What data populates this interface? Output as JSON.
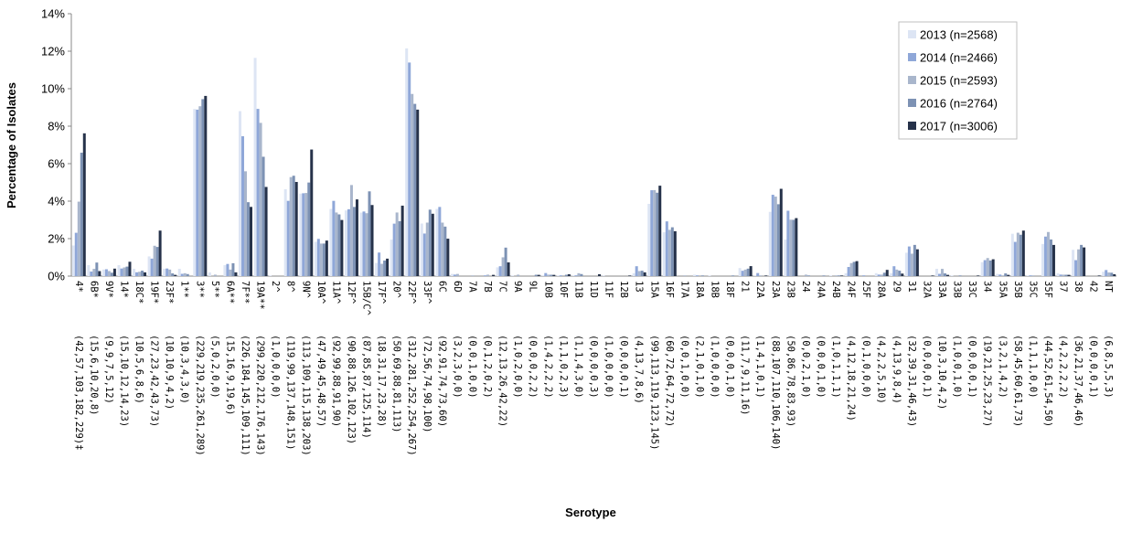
{
  "chart_data": {
    "type": "bar",
    "xlabel": "Serotype",
    "ylabel": "Percentage of Isolates",
    "ylim": [
      0,
      14
    ],
    "yticks": [
      "0%",
      "2%",
      "4%",
      "6%",
      "8%",
      "10%",
      "12%",
      "14%"
    ],
    "grid": false,
    "legend_position": "top-right",
    "categories": [
      "4*",
      "6B*",
      "9V*",
      "14*",
      "18C*",
      "19F*",
      "23F*",
      "1**",
      "3**",
      "5**",
      "6A**",
      "7F**",
      "19A**",
      "2^",
      "8^",
      "9N^",
      "10A^",
      "11A^",
      "12F^",
      "15B/C^",
      "17F^",
      "20^",
      "22F^",
      "33F^",
      "6C",
      "6D",
      "7A",
      "7B",
      "7C",
      "9A",
      "9L",
      "10B",
      "10F",
      "11B",
      "11D",
      "11F",
      "12B",
      "13",
      "15A",
      "16F",
      "17A",
      "18A",
      "18B",
      "18F",
      "21",
      "22A",
      "23A",
      "23B",
      "24",
      "24A",
      "24B",
      "24F",
      "25F",
      "28A",
      "29",
      "31",
      "32A",
      "33A",
      "33B",
      "33C",
      "34",
      "35A",
      "35B",
      "35C",
      "35F",
      "37",
      "38",
      "42",
      "NT"
    ],
    "count_labels": [
      "(42,57,103,182,229)‡",
      "(15,6,10,20,8)",
      "(9,9,7,5,12)",
      "(15,10,12,14,23)",
      "(10,5,6,8,6)",
      "(27,23,42,43,73)",
      "(10,10,9,4,2)",
      "(10,3,4,3,0)",
      "(229,219,235,261,289)",
      "(5,0,2,0,0)",
      "(15,16,9,19,6)",
      "(226,184,145,109,111)",
      "(299,220,212,176,143)",
      "(1,0,0,0,0)",
      "(119,99,137,148,151)",
      "(113,109,115,138,203)",
      "(47,49,45,48,57)",
      "(92,99,88,91,90)",
      "(90,88,126,102,123)",
      "(87,85,87,125,114)",
      "(18,31,17,23,28)",
      "(50,69,88,81,113)",
      "(312,281,252,254,267)",
      "(72,56,74,98,100)",
      "(92,91,74,73,60)",
      "(3,2,3,0,0)",
      "(0,0,1,0,0)",
      "(0,1,2,0,2)",
      "(12,13,26,42,22)",
      "(1,0,2,0,0)",
      "(0,0,0,2,2)",
      "(1,4,2,2,2)",
      "(1,1,0,2,3)",
      "(1,1,4,3,0)",
      "(0,0,0,0,3)",
      "(1,0,0,0,0)",
      "(0,0,0,0,1)",
      "(4,13,7,8,6)",
      "(99,113,119,123,145)",
      "(60,72,64,72,72)",
      "(0,0,1,0,0)",
      "(2,1,0,1,0)",
      "(1,0,0,0,0)",
      "(0,0,0,1,0)",
      "(11,7,9,11,16)",
      "(1,4,1,0,1)",
      "(88,107,110,106,140)",
      "(50,86,78,83,93)",
      "(0,0,2,1,0)",
      "(0,0,0,1,0)",
      "(1,0,1,1,1)",
      "(4,12,18,21,24)",
      "(0,1,0,0,0)",
      "(4,2,2,5,10)",
      "(4,13,9,8,4)",
      "(32,39,31,46,43)",
      "(0,0,0,0,1)",
      "(10,3,10,4,2)",
      "(1,0,0,1,0)",
      "(0,0,0,0,1)",
      "(19,21,25,23,27)",
      "(3,2,1,4,2)",
      "(58,45,60,61,73)",
      "(1,1,1,0,0)",
      "(44,52,61,54,50)",
      "(4,2,2,2,2)",
      "(36,21,37,46,46)",
      "(0,0,0,0,1)",
      "(6,8,5,5,3)"
    ],
    "denominators": [
      2568,
      2466,
      2593,
      2764,
      3006
    ],
    "series": [
      {
        "name": "2013 (n=2568)",
        "color": "#dde5f4"
      },
      {
        "name": "2014 (n=2466)",
        "color": "#8fa7d8"
      },
      {
        "name": "2015 (n=2593)",
        "color": "#a9b6cc"
      },
      {
        "name": "2016 (n=2764)",
        "color": "#7d92b4"
      },
      {
        "name": "2017 (n=3006)",
        "color": "#26324a"
      }
    ]
  }
}
